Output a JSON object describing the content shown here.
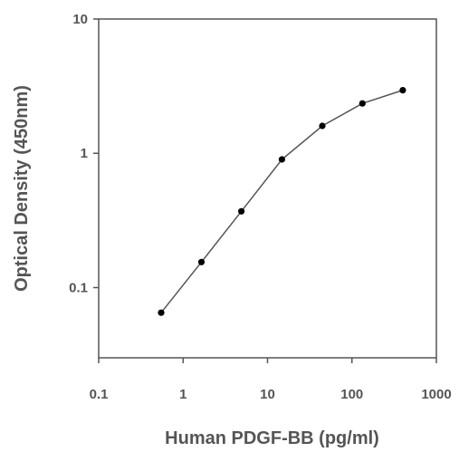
{
  "chart_data": {
    "type": "line",
    "title": "",
    "xlabel": "Human PDGF-BB (pg/ml)",
    "ylabel": "Optical Density (450nm)",
    "x_scale": "log",
    "y_scale": "log",
    "xlim": [
      0.1,
      1000
    ],
    "ylim": [
      0.03,
      10
    ],
    "x_ticks": [
      0.1,
      1,
      10,
      100,
      1000
    ],
    "x_tick_labels": [
      "0.1",
      "1",
      "10",
      "100",
      "1000"
    ],
    "y_ticks": [
      0.1,
      1,
      10
    ],
    "y_tick_labels": [
      "0.1",
      "1",
      "10"
    ],
    "grid": false,
    "legend": "none",
    "series": [
      {
        "x": [
          0.55,
          1.65,
          4.9,
          14.8,
          44.5,
          133,
          400
        ],
        "y": [
          0.065,
          0.155,
          0.37,
          0.9,
          1.6,
          2.35,
          2.95
        ]
      }
    ],
    "colors": {
      "line": "#555555",
      "marker": "#000000",
      "axis": "#555555",
      "text": "#555555"
    }
  }
}
